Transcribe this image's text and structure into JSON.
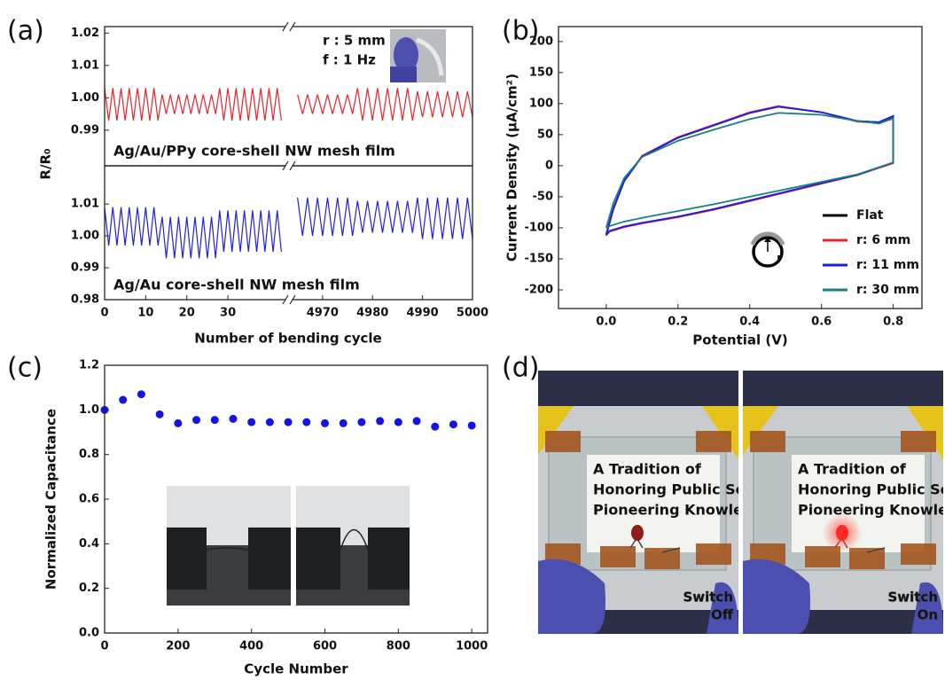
{
  "chart_data": [
    {
      "type": "line",
      "panel_label": "(a)",
      "ylabel": "R/R₀",
      "xlabel": "Number of bending cycle",
      "annotations": [
        "r : 5 mm",
        "f : 1 Hz"
      ],
      "xlim_segments": [
        [
          0,
          44
        ],
        [
          4964,
          5000
        ]
      ],
      "xticks": [
        0,
        10,
        20,
        30,
        4970,
        4980,
        4990,
        5000
      ],
      "x": [
        0,
        1,
        2,
        3,
        4,
        5,
        6,
        7,
        8,
        9,
        10,
        11,
        12,
        13,
        14,
        15,
        16,
        17,
        18,
        19,
        20,
        21,
        22,
        23,
        24,
        25,
        26,
        27,
        28,
        29,
        30,
        31,
        32,
        33,
        34,
        35,
        36,
        37,
        38,
        39,
        40,
        41,
        42,
        43,
        null,
        4965,
        4966,
        4967,
        4968,
        4969,
        4970,
        4971,
        4972,
        4973,
        4974,
        4975,
        4976,
        4977,
        4978,
        4979,
        4980,
        4981,
        4982,
        4983,
        4984,
        4985,
        4986,
        4987,
        4988,
        4989,
        4990,
        4991,
        4992,
        4993,
        4994,
        4995,
        4996,
        4997,
        4998,
        4999,
        5000
      ],
      "panels": [
        {
          "ylim": [
            0.979,
            1.022
          ],
          "yticks": [
            {
              "value": 0.99,
              "label": "0.99"
            },
            {
              "value": 1.0,
              "label": "1.00"
            },
            {
              "value": 1.01,
              "label": "1.01"
            },
            {
              "value": 1.02,
              "label": "1.02"
            }
          ],
          "series": [
            {
              "name": "Ag/Au/PPy core-shell NW mesh film",
              "color": "#e8232a",
              "values": [
                1.003,
                0.993,
                1.003,
                0.993,
                1.003,
                0.993,
                1.003,
                0.993,
                1.003,
                0.993,
                1.003,
                0.993,
                1.003,
                0.993,
                1.001,
                0.995,
                1.001,
                0.995,
                1.001,
                0.995,
                1.001,
                0.995,
                1.001,
                0.995,
                1.001,
                0.995,
                1.001,
                0.995,
                1.003,
                0.993,
                1.003,
                0.993,
                1.003,
                0.993,
                1.003,
                0.993,
                1.003,
                0.993,
                1.003,
                0.993,
                1.003,
                0.993,
                1.003,
                0.993,
                null,
                1.001,
                0.995,
                1.001,
                0.995,
                1.001,
                0.995,
                1.001,
                0.995,
                1.001,
                0.995,
                1.001,
                0.995,
                1.003,
                0.993,
                1.003,
                0.993,
                1.003,
                0.993,
                1.003,
                0.993,
                1.003,
                0.993,
                1.003,
                0.993,
                1.002,
                0.994,
                1.002,
                0.994,
                1.002,
                0.994,
                1.002,
                0.994,
                1.002,
                0.994,
                1.002,
                0.994
              ]
            }
          ]
        },
        {
          "ylim": [
            0.98,
            1.022
          ],
          "yticks": [
            {
              "value": 0.98,
              "label": "0.98"
            },
            {
              "value": 0.99,
              "label": "0.99"
            },
            {
              "value": 1.0,
              "label": "1.00"
            },
            {
              "value": 1.01,
              "label": "1.01"
            }
          ],
          "series": [
            {
              "name": "Ag/Au core-shell NW mesh film",
              "color": "#1f1fe0",
              "values": [
                1.009,
                0.997,
                1.009,
                0.997,
                1.009,
                0.997,
                1.009,
                0.997,
                1.009,
                0.997,
                1.009,
                0.997,
                1.009,
                0.997,
                1.006,
                0.993,
                1.006,
                0.993,
                1.006,
                0.993,
                1.006,
                0.993,
                1.006,
                0.993,
                1.006,
                0.993,
                1.006,
                0.993,
                1.008,
                0.995,
                1.008,
                0.995,
                1.008,
                0.995,
                1.008,
                0.995,
                1.008,
                0.995,
                1.008,
                0.995,
                1.008,
                0.995,
                1.008,
                0.995,
                null,
                1.012,
                1.0,
                1.012,
                1.0,
                1.012,
                1.0,
                1.012,
                1.0,
                1.012,
                1.0,
                1.012,
                1.0,
                1.011,
                1.001,
                1.011,
                1.001,
                1.011,
                1.001,
                1.011,
                1.001,
                1.011,
                1.001,
                1.011,
                1.001,
                1.012,
                0.999,
                1.012,
                0.999,
                1.012,
                0.999,
                1.012,
                0.999,
                1.012,
                0.999,
                1.012,
                0.999
              ]
            }
          ]
        }
      ]
    },
    {
      "type": "line",
      "panel_label": "(b)",
      "xlabel": "Potential (V)",
      "ylabel": "Current Density (μA/cm²)",
      "icon_label": "r",
      "xlim": [
        -0.133,
        0.88
      ],
      "ylim": [
        -230,
        224
      ],
      "xticks": [
        {
          "value": 0,
          "label": "0.0"
        },
        0.2,
        0.4,
        0.6,
        0.8
      ],
      "yticks": [
        -200,
        -150,
        -100,
        -50,
        0,
        50,
        100,
        150,
        200
      ],
      "x": [
        0,
        0.02,
        0.05,
        0.1,
        0.2,
        0.3,
        0.4,
        0.48,
        0.6,
        0.7,
        0.76,
        0.8,
        0.8,
        0.7,
        0.6,
        0.5,
        0.4,
        0.3,
        0.2,
        0.1,
        0.05,
        0.01,
        0
      ],
      "series": [
        {
          "name": "Flat",
          "color": "#000000",
          "values": [
            -112,
            -70,
            -25,
            15,
            45,
            65,
            85,
            95,
            86,
            72,
            70,
            80,
            5,
            -15,
            -28,
            -42,
            -56,
            -70,
            -82,
            -92,
            -98,
            -105,
            -112
          ]
        },
        {
          "name": "r: 6 mm",
          "color": "#e8232a",
          "values": [
            -110,
            -68,
            -24,
            16,
            46,
            66,
            86,
            96,
            86,
            71,
            69,
            78,
            4,
            -15,
            -29,
            -43,
            -57,
            -71,
            -83,
            -93,
            -99,
            -106,
            -110
          ]
        },
        {
          "name": "r: 11 mm",
          "color": "#1f1fe0",
          "values": [
            -111,
            -69,
            -25,
            15,
            45,
            65,
            85,
            95,
            86,
            72,
            70,
            80,
            5,
            -15,
            -28,
            -42,
            -56,
            -70,
            -82,
            -92,
            -98,
            -105,
            -111
          ]
        },
        {
          "name": "r: 30 mm",
          "color": "#1a7f7f",
          "values": [
            -100,
            -60,
            -20,
            14,
            40,
            58,
            75,
            85,
            82,
            72,
            68,
            76,
            5,
            -14,
            -26,
            -38,
            -50,
            -62,
            -73,
            -84,
            -90,
            -97,
            -100
          ]
        }
      ]
    },
    {
      "type": "scatter",
      "panel_label": "(c)",
      "xlabel": "Cycle Number",
      "ylabel": "Normalized Capacitance",
      "color": "#1414e6",
      "xlim": [
        0,
        1043
      ],
      "ylim": [
        0,
        1.2
      ],
      "xticks": [
        0,
        200,
        400,
        600,
        800,
        1000
      ],
      "yticks": [
        {
          "value": 0,
          "label": "0.0"
        },
        0.2,
        0.4,
        0.6,
        0.8,
        {
          "value": 1.0,
          "label": "1.0"
        },
        1.2
      ],
      "x": [
        0,
        50,
        100,
        150,
        200,
        250,
        300,
        350,
        400,
        450,
        500,
        550,
        600,
        650,
        700,
        750,
        800,
        850,
        900,
        950,
        1000
      ],
      "values": [
        1.0,
        1.045,
        1.07,
        0.98,
        0.94,
        0.955,
        0.955,
        0.96,
        0.945,
        0.945,
        0.945,
        0.945,
        0.94,
        0.94,
        0.945,
        0.95,
        0.945,
        0.95,
        0.925,
        0.935,
        0.93
      ]
    }
  ],
  "panel_d": {
    "panel_label": "(d)",
    "sign": [
      "A Tradition of",
      "Honoring Public Se",
      "Pioneering Knowle"
    ],
    "photos": [
      {
        "label_lines": [
          "Switch",
          "Off"
        ]
      },
      {
        "label_lines": [
          "Switch",
          "On"
        ]
      }
    ]
  }
}
